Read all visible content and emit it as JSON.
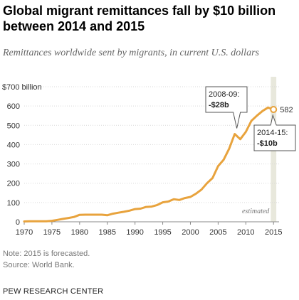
{
  "title": "Global migrant remittances fall by $10 billion between 2014 and 2015",
  "subtitle": "Remittances worldwide sent by migrants, in current U.S. dollars",
  "note": "Note: 2015 is forecasted.",
  "source": "Source: World Bank.",
  "organization": "PEW RESEARCH CENTER",
  "chart_data": {
    "type": "line",
    "x": [
      1970,
      1971,
      1972,
      1973,
      1974,
      1975,
      1976,
      1977,
      1978,
      1979,
      1980,
      1981,
      1982,
      1983,
      1984,
      1985,
      1986,
      1987,
      1988,
      1989,
      1990,
      1991,
      1992,
      1993,
      1994,
      1995,
      1996,
      1997,
      1998,
      1999,
      2000,
      2001,
      2002,
      2003,
      2004,
      2005,
      2006,
      2007,
      2008,
      2009,
      2010,
      2011,
      2012,
      2013,
      2014,
      2015
    ],
    "series": [
      {
        "values": [
          2,
          3,
          3,
          3,
          3,
          5,
          10,
          15,
          20,
          25,
          36,
          37,
          37,
          37,
          37,
          34,
          42,
          47,
          52,
          58,
          66,
          68,
          77,
          79,
          87,
          101,
          105,
          117,
          113,
          123,
          129,
          146,
          167,
          200,
          227,
          289,
          322,
          380,
          455,
          428,
          466,
          523,
          550,
          574,
          592,
          582
        ],
        "color": "#e8a33d"
      }
    ],
    "yticks": [
      "0",
      "100",
      "200",
      "300",
      "400",
      "500",
      "600",
      "$700 billion"
    ],
    "ytick_values": [
      0,
      100,
      200,
      300,
      400,
      500,
      600,
      700
    ],
    "xticks": [
      "1970",
      "1975",
      "1980",
      "1985",
      "1990",
      "1995",
      "2000",
      "2005",
      "2010",
      "2015"
    ],
    "xtick_values": [
      1970,
      1975,
      1980,
      1985,
      1990,
      1995,
      2000,
      2005,
      2010,
      2015
    ],
    "ylim": [
      0,
      700
    ],
    "xlim": [
      1970,
      2016
    ],
    "grid": "horizontal",
    "estimated_band": {
      "from": 2014.5,
      "to": 2015.5,
      "label": "estimated",
      "color": "#e8e8dc"
    },
    "end_label": "582",
    "annotations": [
      {
        "year": "2008-09:",
        "value": "-$28b"
      },
      {
        "year": "2014-15:",
        "value": "-$10b"
      }
    ],
    "colors": {
      "line": "#e8a33d",
      "grid": "#d9d9d9",
      "axis": "#888888",
      "text": "#333333"
    }
  }
}
